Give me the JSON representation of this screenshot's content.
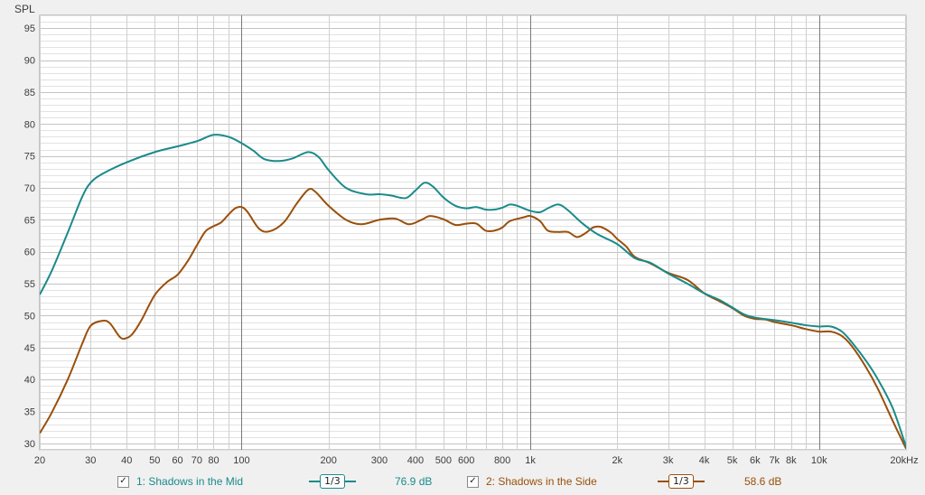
{
  "chart_data": {
    "type": "line",
    "ylabel": "SPL",
    "ylim": [
      29,
      97
    ],
    "xlim": [
      20,
      20000
    ],
    "x_scale": "log",
    "grid": true,
    "y_ticks": [
      30,
      35,
      40,
      45,
      50,
      55,
      60,
      65,
      70,
      75,
      80,
      85,
      90,
      95
    ],
    "x_ticks": [
      {
        "value": 20,
        "label": "20"
      },
      {
        "value": 30,
        "label": "30"
      },
      {
        "value": 40,
        "label": "40"
      },
      {
        "value": 50,
        "label": "50"
      },
      {
        "value": 60,
        "label": "60"
      },
      {
        "value": 70,
        "label": "70"
      },
      {
        "value": 80,
        "label": "80"
      },
      {
        "value": 100,
        "label": "100"
      },
      {
        "value": 200,
        "label": "200"
      },
      {
        "value": 300,
        "label": "300"
      },
      {
        "value": 400,
        "label": "400"
      },
      {
        "value": 500,
        "label": "500"
      },
      {
        "value": 600,
        "label": "600"
      },
      {
        "value": 800,
        "label": "800"
      },
      {
        "value": 1000,
        "label": "1k"
      },
      {
        "value": 2000,
        "label": "2k"
      },
      {
        "value": 3000,
        "label": "3k"
      },
      {
        "value": 4000,
        "label": "4k"
      },
      {
        "value": 5000,
        "label": "5k"
      },
      {
        "value": 6000,
        "label": "6k"
      },
      {
        "value": 7000,
        "label": "7k"
      },
      {
        "value": 8000,
        "label": "8k"
      },
      {
        "value": 10000,
        "label": "10k"
      },
      {
        "value": 20000,
        "label": "20kHz"
      }
    ],
    "series": [
      {
        "name": "1: Shadows in the Mid",
        "color": "#1a8a8a",
        "points": [
          [
            20,
            53.3
          ],
          [
            22,
            57
          ],
          [
            25,
            63
          ],
          [
            28,
            68.5
          ],
          [
            30,
            70.8
          ],
          [
            33,
            72.2
          ],
          [
            40,
            74
          ],
          [
            50,
            75.6
          ],
          [
            60,
            76.5
          ],
          [
            70,
            77.3
          ],
          [
            80,
            78.3
          ],
          [
            90,
            78
          ],
          [
            100,
            77
          ],
          [
            110,
            75.8
          ],
          [
            120,
            74.5
          ],
          [
            135,
            74.2
          ],
          [
            150,
            74.6
          ],
          [
            170,
            75.6
          ],
          [
            185,
            74.8
          ],
          [
            200,
            72.8
          ],
          [
            230,
            70
          ],
          [
            270,
            69
          ],
          [
            300,
            69
          ],
          [
            330,
            68.8
          ],
          [
            370,
            68.4
          ],
          [
            400,
            69.6
          ],
          [
            430,
            70.8
          ],
          [
            460,
            70.2
          ],
          [
            500,
            68.5
          ],
          [
            550,
            67.2
          ],
          [
            600,
            66.8
          ],
          [
            650,
            67
          ],
          [
            700,
            66.6
          ],
          [
            750,
            66.6
          ],
          [
            800,
            66.9
          ],
          [
            850,
            67.4
          ],
          [
            900,
            67.2
          ],
          [
            1000,
            66.4
          ],
          [
            1080,
            66.2
          ],
          [
            1150,
            66.8
          ],
          [
            1250,
            67.4
          ],
          [
            1350,
            66.5
          ],
          [
            1500,
            64.6
          ],
          [
            1700,
            62.8
          ],
          [
            2000,
            61.2
          ],
          [
            2300,
            59
          ],
          [
            2600,
            58.3
          ],
          [
            3000,
            56.6
          ],
          [
            3500,
            55
          ],
          [
            4000,
            53.5
          ],
          [
            4500,
            52.5
          ],
          [
            5000,
            51.3
          ],
          [
            5500,
            50.2
          ],
          [
            6000,
            49.7
          ],
          [
            7000,
            49.3
          ],
          [
            8000,
            48.9
          ],
          [
            9000,
            48.5
          ],
          [
            10000,
            48.3
          ],
          [
            11000,
            48.3
          ],
          [
            12000,
            47.5
          ],
          [
            13000,
            45.8
          ],
          [
            14500,
            43
          ],
          [
            16000,
            40
          ],
          [
            18000,
            35.5
          ],
          [
            20000,
            29.5
          ]
        ]
      },
      {
        "name": "2: Shadows in the Side",
        "color": "#9a4f0a",
        "points": [
          [
            20,
            31.6
          ],
          [
            22,
            34.8
          ],
          [
            25,
            40
          ],
          [
            28,
            45.5
          ],
          [
            30,
            48.4
          ],
          [
            33,
            49.2
          ],
          [
            35,
            48.8
          ],
          [
            38,
            46.6
          ],
          [
            40,
            46.5
          ],
          [
            42,
            47.2
          ],
          [
            45,
            49.3
          ],
          [
            50,
            53.2
          ],
          [
            55,
            55.2
          ],
          [
            60,
            56.4
          ],
          [
            65,
            58.5
          ],
          [
            70,
            61
          ],
          [
            75,
            63.2
          ],
          [
            80,
            64
          ],
          [
            85,
            64.6
          ],
          [
            90,
            65.8
          ],
          [
            95,
            66.8
          ],
          [
            100,
            67
          ],
          [
            105,
            66.2
          ],
          [
            115,
            63.6
          ],
          [
            125,
            63.2
          ],
          [
            140,
            64.6
          ],
          [
            155,
            67.5
          ],
          [
            170,
            69.7
          ],
          [
            180,
            69.4
          ],
          [
            200,
            67.2
          ],
          [
            230,
            65
          ],
          [
            260,
            64.3
          ],
          [
            300,
            65
          ],
          [
            340,
            65.2
          ],
          [
            380,
            64.3
          ],
          [
            420,
            65
          ],
          [
            450,
            65.6
          ],
          [
            500,
            65.1
          ],
          [
            550,
            64.2
          ],
          [
            600,
            64.4
          ],
          [
            650,
            64.4
          ],
          [
            700,
            63.3
          ],
          [
            750,
            63.3
          ],
          [
            800,
            63.8
          ],
          [
            850,
            64.8
          ],
          [
            950,
            65.4
          ],
          [
            1000,
            65.6
          ],
          [
            1080,
            64.8
          ],
          [
            1150,
            63.3
          ],
          [
            1250,
            63.1
          ],
          [
            1350,
            63.1
          ],
          [
            1450,
            62.3
          ],
          [
            1550,
            62.9
          ],
          [
            1650,
            63.8
          ],
          [
            1750,
            63.9
          ],
          [
            1900,
            63
          ],
          [
            2000,
            62
          ],
          [
            2150,
            60.8
          ],
          [
            2300,
            59.2
          ],
          [
            2600,
            58.2
          ],
          [
            3000,
            56.7
          ],
          [
            3500,
            55.6
          ],
          [
            4000,
            53.5
          ],
          [
            4500,
            52.3
          ],
          [
            5000,
            51.2
          ],
          [
            5500,
            50
          ],
          [
            6000,
            49.5
          ],
          [
            6500,
            49.4
          ],
          [
            7000,
            49
          ],
          [
            8000,
            48.5
          ],
          [
            9000,
            47.9
          ],
          [
            10000,
            47.5
          ],
          [
            11000,
            47.5
          ],
          [
            12000,
            46.8
          ],
          [
            13000,
            45.2
          ],
          [
            14500,
            42
          ],
          [
            16000,
            38.5
          ],
          [
            18000,
            33.5
          ],
          [
            20000,
            29.2
          ]
        ]
      }
    ]
  },
  "legend": {
    "items": [
      {
        "label": "1: Shadows in the Mid",
        "checked": "✓",
        "smoothing": "1/3",
        "value": "76.9 dB",
        "color": "#1a8a8a"
      },
      {
        "label": "2: Shadows in the Side",
        "checked": "✓",
        "smoothing": "1/3",
        "value": "58.6 dB",
        "color": "#9a4f0a"
      }
    ]
  },
  "colors": {
    "plot_bg": "#ffffff",
    "grid": "#cfcfcf",
    "grid_major": "#7a7a7a",
    "axis_text": "#3c3c3c"
  }
}
